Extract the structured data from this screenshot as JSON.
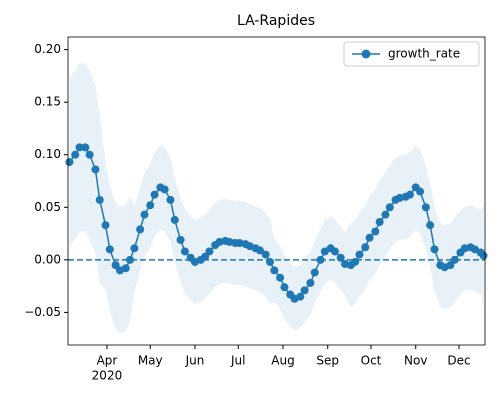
{
  "chart_data": {
    "type": "line",
    "title": "LA-Rapides",
    "x": [
      66,
      70,
      73,
      77,
      80,
      84,
      87,
      91,
      94,
      98,
      101,
      105,
      108,
      111,
      115,
      118,
      122,
      125,
      129,
      132,
      136,
      139,
      143,
      146,
      150,
      153,
      157,
      160,
      163,
      167,
      170,
      174,
      177,
      181,
      184,
      188,
      191,
      195,
      198,
      202,
      205,
      208,
      212,
      215,
      219,
      222,
      226,
      229,
      233,
      236,
      240,
      243,
      247,
      250,
      254,
      257,
      261,
      264,
      267,
      271,
      274,
      278,
      281,
      285,
      288,
      292,
      295,
      299,
      302,
      306,
      309,
      313,
      316,
      319,
      323,
      326,
      330,
      333,
      337,
      340,
      344,
      347,
      351,
      353
    ],
    "series": [
      {
        "name": "growth_rate",
        "color": "#1f77b4",
        "values": [
          0.093,
          0.1,
          0.107,
          0.107,
          0.1,
          0.086,
          0.057,
          0.033,
          0.01,
          -0.005,
          -0.01,
          -0.008,
          0.0,
          0.011,
          0.029,
          0.043,
          0.052,
          0.062,
          0.069,
          0.067,
          0.057,
          0.038,
          0.019,
          0.008,
          0.002,
          -0.002,
          0.0,
          0.003,
          0.008,
          0.014,
          0.017,
          0.018,
          0.017,
          0.016,
          0.016,
          0.015,
          0.013,
          0.011,
          0.009,
          0.005,
          -0.002,
          -0.01,
          -0.017,
          -0.026,
          -0.033,
          -0.037,
          -0.035,
          -0.029,
          -0.022,
          -0.012,
          0.0,
          0.008,
          0.011,
          0.008,
          0.002,
          -0.004,
          -0.005,
          -0.002,
          0.005,
          0.012,
          0.021,
          0.027,
          0.036,
          0.043,
          0.05,
          0.057,
          0.059,
          0.06,
          0.062,
          0.069,
          0.065,
          0.05,
          0.033,
          0.01,
          -0.005,
          -0.007,
          -0.005,
          0.0,
          0.007,
          0.011,
          0.012,
          0.01,
          0.007,
          0.004
        ]
      }
    ],
    "band": {
      "color": "#1f77b4",
      "lower": [
        0.013,
        0.02,
        0.027,
        0.027,
        0.02,
        0.006,
        -0.023,
        -0.027,
        -0.05,
        -0.065,
        -0.07,
        -0.068,
        -0.06,
        -0.029,
        -0.011,
        0.003,
        0.012,
        0.022,
        0.029,
        0.027,
        0.017,
        -0.002,
        -0.021,
        -0.032,
        -0.038,
        -0.042,
        -0.04,
        -0.037,
        -0.032,
        -0.026,
        -0.023,
        -0.022,
        -0.023,
        -0.024,
        -0.024,
        -0.025,
        -0.027,
        -0.029,
        -0.031,
        -0.035,
        -0.042,
        -0.04,
        -0.047,
        -0.056,
        -0.063,
        -0.067,
        -0.065,
        -0.059,
        -0.052,
        -0.042,
        -0.03,
        -0.022,
        -0.019,
        -0.022,
        -0.028,
        -0.034,
        -0.045,
        -0.042,
        -0.035,
        -0.028,
        -0.019,
        -0.013,
        -0.004,
        0.003,
        0.01,
        0.017,
        0.019,
        0.02,
        0.022,
        0.029,
        0.025,
        0.01,
        -0.007,
        -0.03,
        -0.045,
        -0.047,
        -0.045,
        -0.04,
        -0.033,
        -0.029,
        -0.028,
        -0.03,
        -0.033,
        -0.046
      ],
      "upper": [
        0.173,
        0.18,
        0.187,
        0.187,
        0.18,
        0.166,
        0.137,
        0.093,
        0.07,
        0.055,
        0.05,
        0.052,
        0.06,
        0.051,
        0.069,
        0.083,
        0.092,
        0.102,
        0.109,
        0.107,
        0.097,
        0.078,
        0.059,
        0.048,
        0.042,
        0.038,
        0.04,
        0.043,
        0.048,
        0.054,
        0.057,
        0.058,
        0.057,
        0.056,
        0.056,
        0.055,
        0.053,
        0.051,
        0.049,
        0.045,
        0.038,
        0.02,
        0.013,
        0.004,
        -0.003,
        -0.007,
        -0.005,
        0.001,
        0.008,
        0.018,
        0.03,
        0.038,
        0.041,
        0.038,
        0.032,
        0.026,
        0.035,
        0.038,
        0.045,
        0.052,
        0.061,
        0.067,
        0.076,
        0.083,
        0.09,
        0.097,
        0.099,
        0.1,
        0.102,
        0.109,
        0.105,
        0.09,
        0.073,
        0.05,
        0.035,
        0.033,
        0.035,
        0.04,
        0.047,
        0.051,
        0.052,
        0.05,
        0.047,
        0.054
      ]
    },
    "reference_line": {
      "value": 0,
      "style": "dashed"
    },
    "xlim": [
      65,
      354
    ],
    "xticks": [
      {
        "value": 92,
        "label": "Apr",
        "sublabel": "2020"
      },
      {
        "value": 122,
        "label": "May"
      },
      {
        "value": 153,
        "label": "Jun"
      },
      {
        "value": 183,
        "label": "Jul"
      },
      {
        "value": 214,
        "label": "Aug"
      },
      {
        "value": 245,
        "label": "Sep"
      },
      {
        "value": 275,
        "label": "Oct"
      },
      {
        "value": 306,
        "label": "Nov"
      },
      {
        "value": 336,
        "label": "Dec"
      }
    ],
    "ylim": [
      -0.081,
      0.212
    ],
    "yticks": [
      {
        "value": -0.05,
        "label": "−0.05"
      },
      {
        "value": 0,
        "label": "0.00"
      },
      0.05,
      {
        "value": 0.1,
        "label": "0.10"
      },
      0.15,
      {
        "value": 0.2,
        "label": "0.20"
      }
    ],
    "grid": false,
    "legend": "upper right"
  }
}
